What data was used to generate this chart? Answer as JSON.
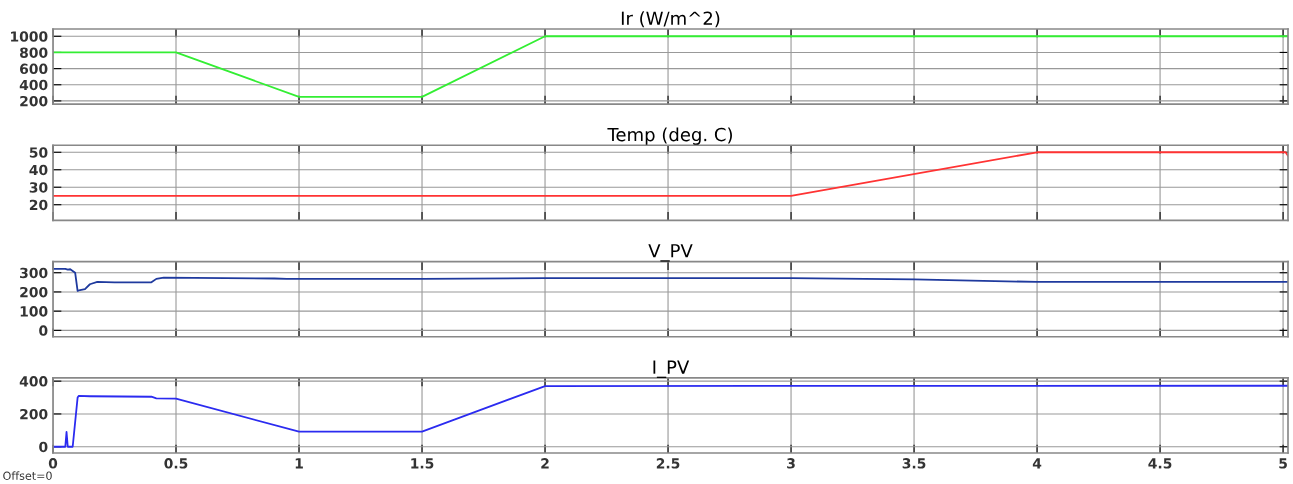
{
  "chart_data": [
    {
      "type": "line",
      "title": "Ir (W/m^2)",
      "x": [
        0,
        0.5,
        1,
        1.5,
        2,
        5.02
      ],
      "series": [
        {
          "color": "#33ee33",
          "values": [
            800,
            800,
            250,
            250,
            1000,
            1000
          ]
        }
      ],
      "xlim": [
        0,
        5.02
      ],
      "xticks": [
        0,
        0.5,
        1,
        1.5,
        2,
        2.5,
        3,
        3.5,
        4,
        4.5,
        5
      ],
      "ylim": [
        160,
        1090
      ],
      "yticks": [
        200,
        400,
        600,
        800,
        1000
      ],
      "grid": true,
      "tick_labels": "y"
    },
    {
      "type": "line",
      "title": "Temp (deg. C)",
      "x": [
        0,
        3,
        4,
        5.01,
        5.02
      ],
      "series": [
        {
          "color": "#ff3333",
          "values": [
            25,
            25,
            50,
            50,
            48
          ]
        }
      ],
      "xlim": [
        0,
        5.02
      ],
      "xticks": [
        0,
        0.5,
        1,
        1.5,
        2,
        2.5,
        3,
        3.5,
        4,
        4.5,
        5
      ],
      "ylim": [
        11,
        54
      ],
      "yticks": [
        20,
        30,
        40,
        50
      ],
      "grid": true,
      "tick_labels": "y"
    },
    {
      "type": "line",
      "title": "V_PV",
      "x": [
        0.002,
        0.05,
        0.06,
        0.07,
        0.09,
        0.1,
        0.11,
        0.13,
        0.15,
        0.18,
        0.25,
        0.4,
        0.42,
        0.45,
        0.9,
        0.95,
        1.5,
        2,
        3,
        3.5,
        4,
        5.02
      ],
      "series": [
        {
          "color": "#1f3a9e",
          "values": [
            320,
            320,
            316,
            318,
            300,
            205,
            210,
            215,
            240,
            252,
            250,
            250,
            268,
            274,
            270,
            268,
            268,
            272,
            272,
            265,
            252,
            252
          ]
        }
      ],
      "xlim": [
        0,
        5.02
      ],
      "xticks": [
        0,
        0.5,
        1,
        1.5,
        2,
        2.5,
        3,
        3.5,
        4,
        4.5,
        5
      ],
      "ylim": [
        -33,
        358
      ],
      "yticks": [
        0,
        100,
        200,
        300
      ],
      "grid": true,
      "tick_labels": "y"
    },
    {
      "type": "line",
      "title": "I_PV",
      "x": [
        0.002,
        0.05,
        0.055,
        0.06,
        0.08,
        0.1,
        0.105,
        0.15,
        0.4,
        0.42,
        0.5,
        1,
        1.5,
        2,
        5.02
      ],
      "series": [
        {
          "color": "#2b2bf0",
          "values": [
            0,
            0,
            90,
            0,
            0,
            300,
            310,
            308,
            305,
            295,
            293,
            92,
            92,
            370,
            372
          ]
        }
      ],
      "xlim": [
        0,
        5.02
      ],
      "xticks": [
        0,
        0.5,
        1,
        1.5,
        2,
        2.5,
        3,
        3.5,
        4,
        4.5,
        5
      ],
      "ylim": [
        -38,
        420
      ],
      "yticks": [
        0,
        200,
        400
      ],
      "grid": true,
      "annotations": [
        "Offset=0"
      ]
    }
  ]
}
